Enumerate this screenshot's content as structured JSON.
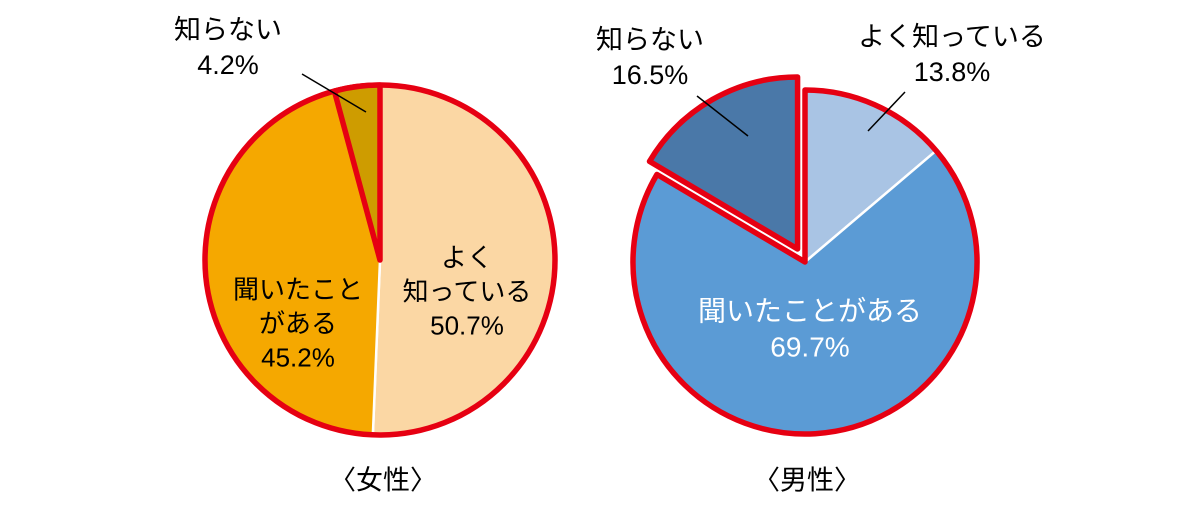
{
  "page": {
    "background_color": "#FFFFFF",
    "description_labels": {
      "female_title": "〈女性〉",
      "male_title": "〈男性〉"
    }
  },
  "chart_data": [
    {
      "type": "pie",
      "title": "〈女性〉",
      "unit": "%",
      "direction": "clockwise",
      "start_angle_deg": 0,
      "outline_color": "#E60012",
      "separator_color": "#FFFFFF",
      "legend": "none",
      "slices": [
        {
          "label": "よく知っている",
          "value": 50.7,
          "color": "#FBD7A4",
          "text_color": "#000000",
          "inner_label": "よく\n知っている\n50.7%"
        },
        {
          "label": "聞いたことがある",
          "value": 45.2,
          "color": "#F5A800",
          "text_color": "#000000",
          "inner_label": "聞いたこと\nがある\n45.2%"
        },
        {
          "label": "知らない",
          "value": 4.2,
          "color": "#CE9C00",
          "highlight": true,
          "callout": "知らない\n4.2%"
        }
      ]
    },
    {
      "type": "pie",
      "title": "〈男性〉",
      "unit": "%",
      "direction": "clockwise",
      "start_angle_deg": 0,
      "outline_color": "#E60012",
      "separator_color": "#FFFFFF",
      "legend": "none",
      "slices": [
        {
          "label": "よく知っている",
          "value": 13.8,
          "color": "#A9C4E4",
          "callout": "よく知っている\n13.8%"
        },
        {
          "label": "聞いたことがある",
          "value": 69.7,
          "color": "#5B9BD5",
          "text_color": "#FFFFFF",
          "inner_label": "聞いたことがある\n69.7%"
        },
        {
          "label": "知らない",
          "value": 16.5,
          "color": "#4A78A8",
          "highlight": true,
          "exploded": true,
          "callout": "知らない\n16.5%"
        }
      ]
    }
  ]
}
